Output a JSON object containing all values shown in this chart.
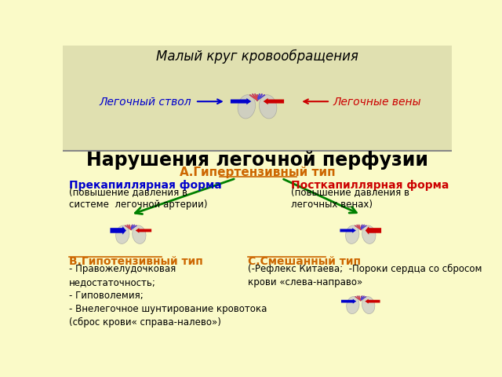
{
  "bg_color": "#FAFAC8",
  "top_section_bg": "#E0E0B0",
  "title_top": "Малый круг кровообращения",
  "label_left": "Легочный ствол",
  "label_right": "Легочные вены",
  "label_left_color": "#0000CC",
  "label_right_color": "#CC0000",
  "main_title": "Нарушения легочной перфузии",
  "section_A_title": "А.Гипертензивный тип",
  "section_A_color": "#CC6600",
  "section_B_title": "В.Гипотензивный тип",
  "section_B_color": "#CC6600",
  "section_C_title": "С.Смешанный тип",
  "section_C_color": "#CC6600",
  "pre_title": "Прекапиллярная форма",
  "pre_title_color": "#0000CC",
  "pre_subtitle": "(повышение давления в\nсистеме  легочной артерии)",
  "post_title": "Посткапиллярная форма",
  "post_title_color": "#CC0000",
  "post_subtitle": "(повышение давления в\nлегочных венах)",
  "section_B_text": "- Правожелудочковая\nнедостаточность;\n- Гиповолемия;\n- Внелегочное шунтирование кровотока\n(сброс крови« справа-налево»)",
  "section_C_text": "(-Рефлекс Китаева;  -Пороки сердца со сбросом\nкрови «слева-направо»",
  "arrow_color": "#008000",
  "divider_color": "#888888"
}
